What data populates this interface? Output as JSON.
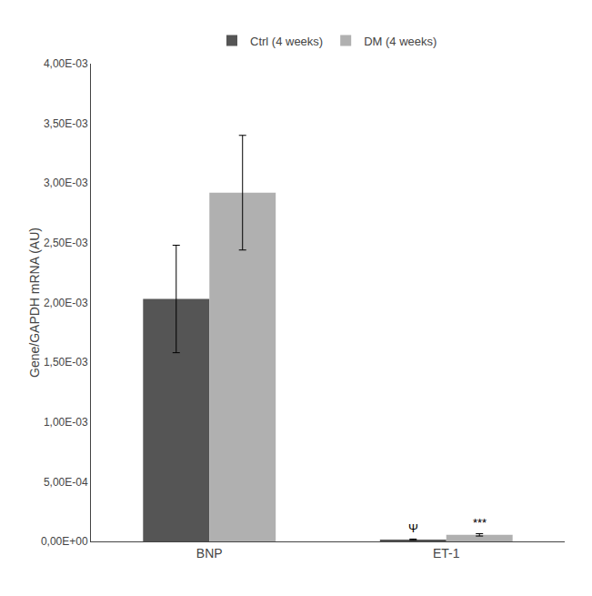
{
  "chart_data": {
    "type": "bar",
    "categories": [
      "BNP",
      "ET-1"
    ],
    "series": [
      {
        "name": "Ctrl (4 weeks)",
        "color": "#555555",
        "values": [
          0.00203,
          1.5e-05
        ],
        "errors": [
          0.00045,
          5e-06
        ]
      },
      {
        "name": "DM (4 weeks)",
        "color": "#b0b0b0",
        "values": [
          0.00292,
          5.5e-05
        ],
        "errors": [
          0.00048,
          1e-05
        ]
      }
    ],
    "ylabel": "Gene/GAPDH mRNA (AU)",
    "ylim": [
      0,
      0.004
    ],
    "yticks": [
      {
        "value": 0.0,
        "label": "0,00E+00"
      },
      {
        "value": 0.0005,
        "label": "5,00E-04"
      },
      {
        "value": 0.001,
        "label": "1,00E-03"
      },
      {
        "value": 0.0015,
        "label": "1,50E-03"
      },
      {
        "value": 0.002,
        "label": "2,00E-03"
      },
      {
        "value": 0.0025,
        "label": "2,50E-03"
      },
      {
        "value": 0.003,
        "label": "3,00E-03"
      },
      {
        "value": 0.0035,
        "label": "3,50E-03"
      },
      {
        "value": 0.004,
        "label": "4,00E-03"
      }
    ],
    "annotations": [
      {
        "text": "Ψ",
        "category": "ET-1",
        "series": "Ctrl (4 weeks)"
      },
      {
        "text": "***",
        "category": "ET-1",
        "series": "DM (4 weeks)"
      }
    ],
    "legend": "top",
    "grid": false
  }
}
